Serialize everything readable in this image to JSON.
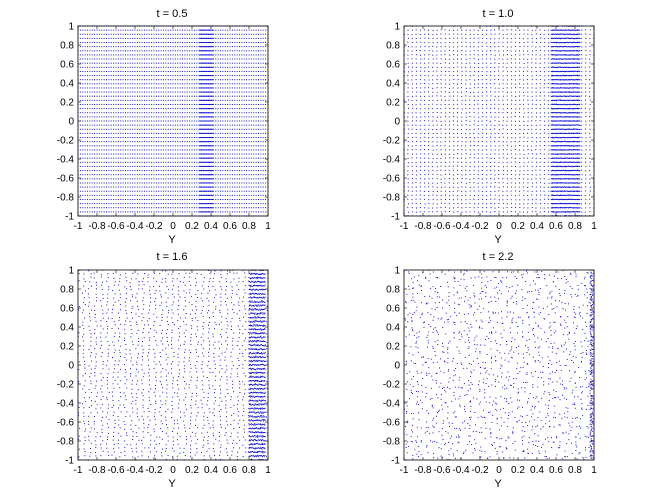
{
  "chart_data": [
    {
      "type": "scatter",
      "title": "t = 0.5",
      "xlabel": "Y",
      "ylabel": "",
      "xlim": [
        -1,
        1
      ],
      "ylim": [
        -1,
        1
      ],
      "xticks": [
        "-1",
        "-0.8",
        "-0.6",
        "-0.4",
        "-0.2",
        "0",
        "0.2",
        "0.4",
        "0.6",
        "0.8",
        "1"
      ],
      "yticks": [
        "-1",
        "-0.8",
        "-0.6",
        "-0.4",
        "-0.2",
        "0",
        "0.2",
        "0.4",
        "0.6",
        "0.8",
        "1"
      ],
      "color": "#1515d8",
      "pattern": {
        "grid_columns": 80,
        "grid_rows": 46,
        "dense_band": [
          0.28,
          0.42
        ],
        "jitter": 0.0,
        "wall_x": 1.0
      }
    },
    {
      "type": "scatter",
      "title": "t = 1.0",
      "xlabel": "Y",
      "ylabel": "",
      "xlim": [
        -1,
        1
      ],
      "ylim": [
        -1,
        1
      ],
      "xticks": [
        "-1",
        "-0.8",
        "-0.6",
        "-0.4",
        "-0.2",
        "0",
        "0.2",
        "0.4",
        "0.6",
        "0.8",
        "1"
      ],
      "yticks": [
        "-1",
        "-0.8",
        "-0.6",
        "-0.4",
        "-0.2",
        "0",
        "0.2",
        "0.4",
        "0.6",
        "0.8",
        "1"
      ],
      "color": "#1515d8",
      "pattern": {
        "grid_columns": 46,
        "grid_rows": 46,
        "dense_band": [
          0.55,
          0.85
        ],
        "jitter": 0.12,
        "wall_x": 1.0
      }
    },
    {
      "type": "scatter",
      "title": "t = 1.6",
      "xlabel": "Y",
      "ylabel": "",
      "xlim": [
        -1,
        1
      ],
      "ylim": [
        -1,
        1
      ],
      "xticks": [
        "-1",
        "-0.8",
        "-0.6",
        "-0.4",
        "-0.2",
        "0",
        "0.2",
        "0.4",
        "0.6",
        "0.8",
        "1"
      ],
      "yticks": [
        "-1",
        "-0.8",
        "-0.6",
        "-0.4",
        "-0.2",
        "0",
        "0.2",
        "0.4",
        "0.6",
        "0.8",
        "1"
      ],
      "color": "#1515d8",
      "pattern": {
        "grid_columns": 32,
        "grid_rows": 48,
        "dense_band": [
          0.8,
          0.97
        ],
        "jitter": 0.35,
        "wall_x": 1.0
      }
    },
    {
      "type": "scatter",
      "title": "t = 2.2",
      "xlabel": "Y",
      "ylabel": "",
      "xlim": [
        -1,
        1
      ],
      "ylim": [
        -1,
        1
      ],
      "xticks": [
        "-1",
        "-0.8",
        "-0.6",
        "-0.4",
        "-0.2",
        "0",
        "0.2",
        "0.4",
        "0.6",
        "0.8",
        "1"
      ],
      "yticks": [
        "-1",
        "-0.8",
        "-0.6",
        "-0.4",
        "-0.2",
        "0",
        "0.2",
        "0.4",
        "0.6",
        "0.8",
        "1"
      ],
      "color": "#1515d8",
      "pattern": {
        "grid_columns": 36,
        "grid_rows": 38,
        "dense_band": [
          0.96,
          0.99
        ],
        "jitter": 0.9,
        "wall_x": 0.97
      }
    }
  ]
}
